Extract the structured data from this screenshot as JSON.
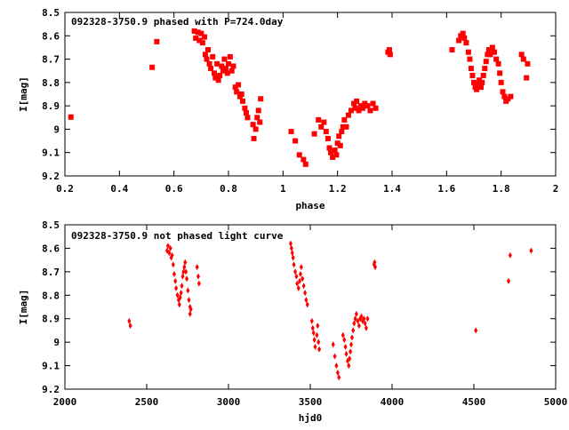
{
  "window": {
    "width": 640,
    "height": 480
  },
  "colors": {
    "points": "#ff0000",
    "frame": "#000000",
    "background": "#ffffff"
  },
  "chart_data": [
    {
      "id": "phased",
      "type": "scatter",
      "title": "092328-3750.9 phased with P=724.0day",
      "xlabel": "phase",
      "ylabel": "I[mag]",
      "xlim": [
        0.2,
        2.0
      ],
      "ylim": [
        9.2,
        8.5
      ],
      "y_inverted": true,
      "grid": false,
      "legend": "none",
      "marker": "filled-square",
      "xticks": [
        0.2,
        0.4,
        0.6,
        0.8,
        1.0,
        1.2,
        1.4,
        1.6,
        1.8,
        2.0
      ],
      "xtick_labels": [
        "0.2",
        "0.4",
        "0.6",
        "0.8",
        "1",
        "1.2",
        "1.4",
        "1.6",
        "1.8",
        "2"
      ],
      "yticks": [
        8.5,
        8.6,
        8.7,
        8.8,
        8.9,
        9.0,
        9.1,
        9.2
      ],
      "ytick_labels": [
        "8.5",
        "8.6",
        "8.7",
        "8.8",
        "8.9",
        "9",
        "9.1",
        "9.2"
      ],
      "points": [
        [
          0.222,
          8.948
        ],
        [
          0.52,
          8.735
        ],
        [
          0.537,
          8.625
        ],
        [
          0.675,
          8.58
        ],
        [
          0.68,
          8.61
        ],
        [
          0.688,
          8.585
        ],
        [
          0.693,
          8.62
        ],
        [
          0.7,
          8.59
        ],
        [
          0.705,
          8.63
        ],
        [
          0.712,
          8.605
        ],
        [
          0.715,
          8.68
        ],
        [
          0.72,
          8.7
        ],
        [
          0.725,
          8.66
        ],
        [
          0.73,
          8.72
        ],
        [
          0.735,
          8.74
        ],
        [
          0.742,
          8.69
        ],
        [
          0.748,
          8.76
        ],
        [
          0.752,
          8.78
        ],
        [
          0.758,
          8.72
        ],
        [
          0.763,
          8.79
        ],
        [
          0.768,
          8.77
        ],
        [
          0.775,
          8.73
        ],
        [
          0.78,
          8.75
        ],
        [
          0.785,
          8.7
        ],
        [
          0.79,
          8.74
        ],
        [
          0.796,
          8.76
        ],
        [
          0.8,
          8.72
        ],
        [
          0.806,
          8.69
        ],
        [
          0.812,
          8.75
        ],
        [
          0.818,
          8.73
        ],
        [
          0.825,
          8.82
        ],
        [
          0.83,
          8.84
        ],
        [
          0.836,
          8.81
        ],
        [
          0.842,
          8.86
        ],
        [
          0.848,
          8.85
        ],
        [
          0.852,
          8.88
        ],
        [
          0.86,
          8.91
        ],
        [
          0.865,
          8.93
        ],
        [
          0.87,
          8.95
        ],
        [
          0.89,
          8.98
        ],
        [
          0.893,
          9.04
        ],
        [
          0.9,
          9.0
        ],
        [
          0.905,
          8.95
        ],
        [
          0.91,
          8.92
        ],
        [
          0.915,
          8.97
        ],
        [
          0.918,
          8.87
        ],
        [
          1.03,
          9.01
        ],
        [
          1.045,
          9.05
        ],
        [
          1.06,
          9.11
        ],
        [
          1.075,
          9.13
        ],
        [
          1.083,
          9.15
        ],
        [
          1.115,
          9.02
        ],
        [
          1.13,
          8.96
        ],
        [
          1.14,
          8.99
        ],
        [
          1.15,
          8.97
        ],
        [
          1.158,
          9.01
        ],
        [
          1.165,
          9.04
        ],
        [
          1.17,
          9.08
        ],
        [
          1.175,
          9.1
        ],
        [
          1.182,
          9.12
        ],
        [
          1.19,
          9.09
        ],
        [
          1.196,
          9.11
        ],
        [
          1.2,
          9.06
        ],
        [
          1.205,
          9.03
        ],
        [
          1.21,
          9.07
        ],
        [
          1.215,
          9.01
        ],
        [
          1.22,
          8.99
        ],
        [
          1.225,
          8.96
        ],
        [
          1.232,
          8.99
        ],
        [
          1.24,
          8.94
        ],
        [
          1.25,
          8.92
        ],
        [
          1.26,
          8.89
        ],
        [
          1.265,
          8.91
        ],
        [
          1.27,
          8.88
        ],
        [
          1.278,
          8.92
        ],
        [
          1.285,
          8.9
        ],
        [
          1.292,
          8.91
        ],
        [
          1.3,
          8.89
        ],
        [
          1.31,
          8.9
        ],
        [
          1.32,
          8.92
        ],
        [
          1.33,
          8.89
        ],
        [
          1.34,
          8.91
        ],
        [
          1.385,
          8.67
        ],
        [
          1.39,
          8.66
        ],
        [
          1.393,
          8.68
        ],
        [
          1.62,
          8.66
        ],
        [
          1.645,
          8.62
        ],
        [
          1.652,
          8.6
        ],
        [
          1.66,
          8.59
        ],
        [
          1.665,
          8.61
        ],
        [
          1.672,
          8.63
        ],
        [
          1.68,
          8.67
        ],
        [
          1.685,
          8.7
        ],
        [
          1.69,
          8.74
        ],
        [
          1.695,
          8.77
        ],
        [
          1.7,
          8.8
        ],
        [
          1.705,
          8.82
        ],
        [
          1.71,
          8.83
        ],
        [
          1.716,
          8.81
        ],
        [
          1.72,
          8.79
        ],
        [
          1.726,
          8.82
        ],
        [
          1.73,
          8.8
        ],
        [
          1.735,
          8.77
        ],
        [
          1.74,
          8.74
        ],
        [
          1.745,
          8.71
        ],
        [
          1.75,
          8.68
        ],
        [
          1.755,
          8.66
        ],
        [
          1.76,
          8.68
        ],
        [
          1.768,
          8.65
        ],
        [
          1.775,
          8.67
        ],
        [
          1.782,
          8.7
        ],
        [
          1.79,
          8.72
        ],
        [
          1.795,
          8.76
        ],
        [
          1.8,
          8.8
        ],
        [
          1.806,
          8.84
        ],
        [
          1.812,
          8.86
        ],
        [
          1.818,
          8.88
        ],
        [
          1.825,
          8.87
        ],
        [
          1.835,
          8.86
        ],
        [
          1.875,
          8.68
        ],
        [
          1.882,
          8.7
        ],
        [
          1.893,
          8.78
        ],
        [
          1.897,
          8.72
        ]
      ]
    },
    {
      "id": "unphased",
      "type": "scatter",
      "title": "092328-3750.9 not phased light curve",
      "xlabel": "hjd0",
      "ylabel": "I[mag]",
      "xlim": [
        2000,
        5000
      ],
      "ylim": [
        9.2,
        8.5
      ],
      "y_inverted": true,
      "grid": false,
      "legend": "none",
      "marker": "small-diamond",
      "xticks": [
        2000,
        2500,
        3000,
        3500,
        4000,
        4500,
        5000
      ],
      "xtick_labels": [
        "2000",
        "2500",
        "3000",
        "3500",
        "4000",
        "4500",
        "5000"
      ],
      "yticks": [
        8.5,
        8.6,
        8.7,
        8.8,
        8.9,
        9.0,
        9.1,
        9.2
      ],
      "ytick_labels": [
        "8.5",
        "8.6",
        "8.7",
        "8.8",
        "8.9",
        "9",
        "9.1",
        "9.2"
      ],
      "points": [
        [
          2393,
          8.91
        ],
        [
          2400,
          8.93
        ],
        [
          2625,
          8.61
        ],
        [
          2630,
          8.59
        ],
        [
          2638,
          8.62
        ],
        [
          2645,
          8.6
        ],
        [
          2650,
          8.64
        ],
        [
          2655,
          8.63
        ],
        [
          2662,
          8.67
        ],
        [
          2668,
          8.71
        ],
        [
          2675,
          8.74
        ],
        [
          2680,
          8.77
        ],
        [
          2688,
          8.8
        ],
        [
          2695,
          8.82
        ],
        [
          2700,
          8.84
        ],
        [
          2705,
          8.81
        ],
        [
          2710,
          8.79
        ],
        [
          2715,
          8.76
        ],
        [
          2720,
          8.72
        ],
        [
          2725,
          8.7
        ],
        [
          2730,
          8.68
        ],
        [
          2735,
          8.66
        ],
        [
          2740,
          8.7
        ],
        [
          2745,
          8.73
        ],
        [
          2752,
          8.78
        ],
        [
          2758,
          8.82
        ],
        [
          2765,
          8.85
        ],
        [
          2770,
          8.86
        ],
        [
          2765,
          8.88
        ],
        [
          2808,
          8.68
        ],
        [
          2815,
          8.72
        ],
        [
          2820,
          8.75
        ],
        [
          3380,
          8.58
        ],
        [
          3385,
          8.6
        ],
        [
          3390,
          8.62
        ],
        [
          3395,
          8.64
        ],
        [
          3400,
          8.67
        ],
        [
          3408,
          8.7
        ],
        [
          3415,
          8.72
        ],
        [
          3420,
          8.75
        ],
        [
          3428,
          8.77
        ],
        [
          3435,
          8.74
        ],
        [
          3440,
          8.71
        ],
        [
          3445,
          8.68
        ],
        [
          3452,
          8.73
        ],
        [
          3460,
          8.76
        ],
        [
          3468,
          8.79
        ],
        [
          3475,
          8.82
        ],
        [
          3482,
          8.84
        ],
        [
          3510,
          8.91
        ],
        [
          3515,
          8.94
        ],
        [
          3520,
          8.96
        ],
        [
          3525,
          8.99
        ],
        [
          3530,
          9.02
        ],
        [
          3540,
          8.97
        ],
        [
          3545,
          8.93
        ],
        [
          3550,
          9.0
        ],
        [
          3555,
          9.03
        ],
        [
          3640,
          9.01
        ],
        [
          3650,
          9.06
        ],
        [
          3660,
          9.1
        ],
        [
          3668,
          9.13
        ],
        [
          3675,
          9.15
        ],
        [
          3700,
          8.97
        ],
        [
          3708,
          8.99
        ],
        [
          3715,
          9.02
        ],
        [
          3720,
          9.05
        ],
        [
          3728,
          9.08
        ],
        [
          3735,
          9.1
        ],
        [
          3740,
          9.07
        ],
        [
          3745,
          9.04
        ],
        [
          3750,
          9.01
        ],
        [
          3755,
          8.98
        ],
        [
          3762,
          8.95
        ],
        [
          3768,
          8.92
        ],
        [
          3775,
          8.9
        ],
        [
          3782,
          8.88
        ],
        [
          3790,
          8.91
        ],
        [
          3798,
          8.93
        ],
        [
          3805,
          8.9
        ],
        [
          3812,
          8.89
        ],
        [
          3820,
          8.91
        ],
        [
          3828,
          8.9
        ],
        [
          3835,
          8.92
        ],
        [
          3842,
          8.94
        ],
        [
          3850,
          8.9
        ],
        [
          3890,
          8.67
        ],
        [
          3893,
          8.66
        ],
        [
          3897,
          8.68
        ],
        [
          4512,
          8.95
        ],
        [
          4712,
          8.74
        ],
        [
          4722,
          8.63
        ],
        [
          4850,
          8.61
        ]
      ]
    }
  ]
}
